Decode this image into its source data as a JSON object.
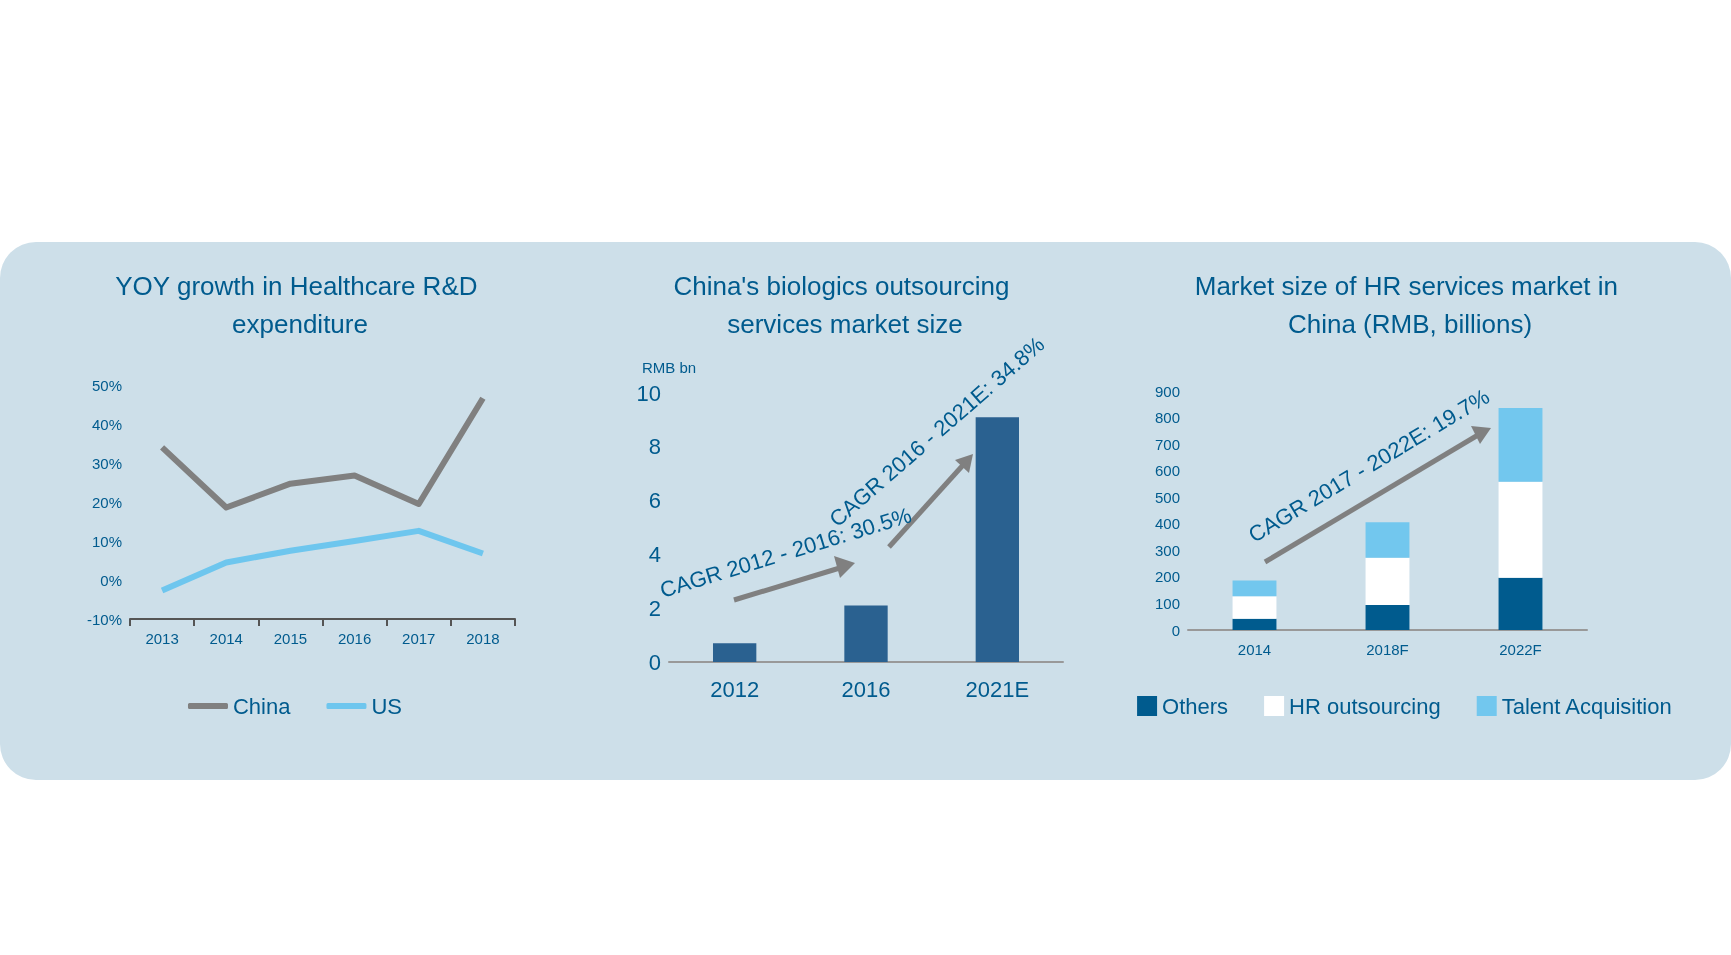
{
  "chart_data": [
    {
      "type": "line",
      "title": "YOY growth in Healthcare R&D expenditure",
      "categories": [
        "2013",
        "2014",
        "2015",
        "2016",
        "2017",
        "2018"
      ],
      "series": [
        {
          "name": "China",
          "color": "#808080",
          "values": [
            34,
            18.6,
            24.7,
            26.8,
            19.5,
            46.6
          ]
        },
        {
          "name": "US",
          "color": "#6ec6ee",
          "values": [
            -2.7,
            4.5,
            7.5,
            10,
            12.6,
            6.8
          ]
        }
      ],
      "ylim": [
        -10,
        50
      ],
      "yticks": [
        {
          "value": -10,
          "label": "-10%"
        },
        {
          "value": 0,
          "label": "0%"
        },
        {
          "value": 10,
          "label": "10%"
        },
        {
          "value": 20,
          "label": "20%"
        },
        {
          "value": 30,
          "label": "30%"
        },
        {
          "value": 40,
          "label": "40%"
        },
        {
          "value": 50,
          "label": "50%"
        }
      ],
      "grid": false,
      "legend": "bottom",
      "marker": "none"
    },
    {
      "type": "bar",
      "title": "China's biologics outsourcing services market size",
      "ylabel": "RMB bn",
      "categories": [
        "2012",
        "2016",
        "2021E"
      ],
      "values": [
        0.7,
        2.1,
        9.1
      ],
      "color": "#2a6190",
      "ylim": [
        0,
        10
      ],
      "yticks": [
        0,
        2,
        4,
        6,
        8,
        10
      ],
      "grid": false,
      "annotations": [
        "CAGR 2012 - 2016: 30.5%",
        "CAGR 2016 - 2021E: 34.8%"
      ]
    },
    {
      "type": "bar",
      "title": "Market size of HR services market in China (RMB, billions)",
      "categories": [
        "2014",
        "2018F",
        "2022F"
      ],
      "stacked": true,
      "series": [
        {
          "name": "Others",
          "color": "#005b8e",
          "values": [
            42,
            94,
            197
          ]
        },
        {
          "name": "HR outsourcing",
          "color": "#ffffff",
          "values": [
            85,
            178,
            361
          ]
        },
        {
          "name": "Talent Acquisition",
          "color": "#72c7ee",
          "values": [
            59,
            134,
            278
          ]
        }
      ],
      "ylim": [
        0,
        900
      ],
      "yticks": [
        0,
        100,
        200,
        300,
        400,
        500,
        600,
        700,
        800,
        900
      ],
      "grid": false,
      "legend": "bottom",
      "annotations": [
        "CAGR 2017 - 2022E: 19.7%"
      ]
    }
  ]
}
